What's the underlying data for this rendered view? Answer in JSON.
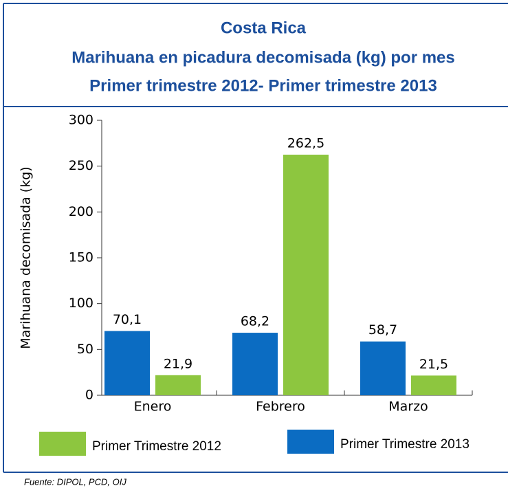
{
  "chart_data": {
    "type": "bar",
    "title": "Costa Rica",
    "subtitle": [
      "Marihuana en picadura decomisada (kg) por mes",
      "Primer trimestre 2012- Primer trimestre 2013"
    ],
    "y_label": "Marihuana decomisada (kg)",
    "categories": [
      "Enero",
      "Febrero",
      "Marzo"
    ],
    "series": [
      {
        "name": "Primer Trimestre 2012",
        "color": "#8dc63f",
        "values": [
          21.9,
          262.5,
          21.5
        ],
        "value_labels": [
          "21,9",
          "262,5",
          "21,5"
        ]
      },
      {
        "name": "Primer Trimestre 2013",
        "color": "#0b6cc2",
        "values": [
          70.1,
          68.2,
          58.7
        ],
        "value_labels": [
          "70,1",
          "68,2",
          "58,7"
        ]
      }
    ],
    "ylim": [
      0,
      300
    ],
    "yticks": [
      0,
      50,
      100,
      150,
      200,
      250,
      300
    ],
    "source": "Fuente: DIPOL, PCD, OIJ"
  }
}
